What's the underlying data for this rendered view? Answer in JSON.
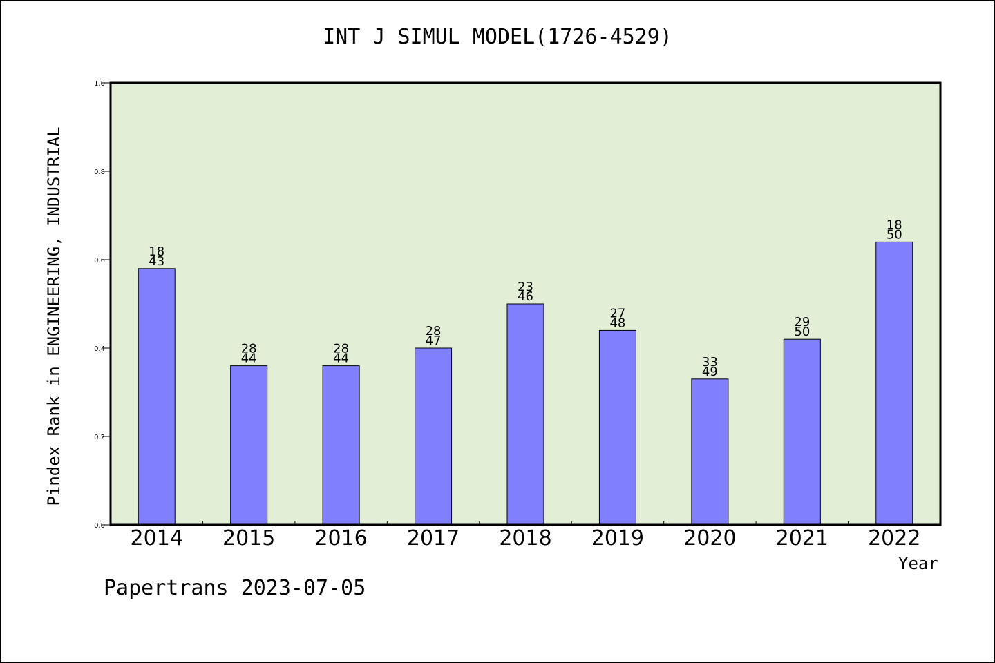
{
  "chart_data": {
    "type": "bar",
    "title": "INT J SIMUL MODEL(1726-4529)",
    "ylabel": "Pindex Rank in ENGINEERING, INDUSTRIAL",
    "xlabel": "Year",
    "categories": [
      "2014",
      "2015",
      "2016",
      "2017",
      "2018",
      "2019",
      "2020",
      "2021",
      "2022"
    ],
    "values": [
      0.58,
      0.36,
      0.36,
      0.4,
      0.5,
      0.44,
      0.33,
      0.42,
      0.64
    ],
    "ranks": [
      "18",
      "28",
      "28",
      "28",
      "23",
      "27",
      "33",
      "29",
      "18"
    ],
    "totals": [
      "43",
      "44",
      "44",
      "47",
      "46",
      "48",
      "49",
      "50",
      "50"
    ],
    "ylim": [
      0,
      1.0
    ],
    "yticks": [
      "0.0",
      "0.2",
      "0.4",
      "0.6",
      "0.8",
      "1.0"
    ],
    "grid": false,
    "colors": {
      "bar": "#8080ff",
      "plot_background": "#e2efd6",
      "axis": "#000000"
    }
  },
  "footer": "Papertrans 2023-07-05"
}
